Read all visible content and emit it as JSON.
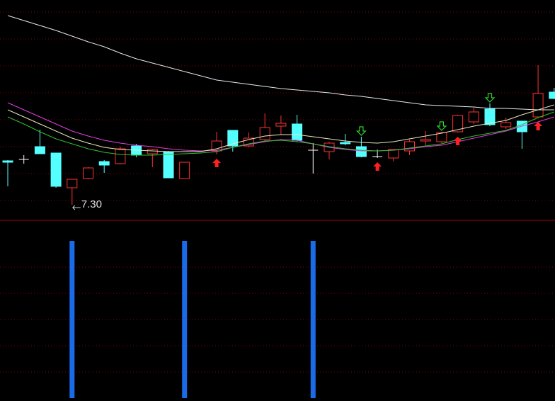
{
  "chart_data": [
    {
      "type": "candlestick",
      "categories": [
        null,
        null,
        null,
        null,
        null,
        null,
        null,
        null,
        null,
        null,
        null,
        null,
        null,
        null,
        null,
        null,
        null,
        null,
        null,
        null,
        null,
        null,
        null,
        null,
        null,
        null,
        null,
        null,
        null,
        null,
        null,
        null,
        null,
        null,
        null
      ],
      "open": [
        7.92,
        7.94,
        8.12,
        8.03,
        7.54,
        7.67,
        7.91,
        7.88,
        8.13,
        8.02,
        8.05,
        7.67,
        null,
        8.06,
        8.35,
        8.13,
        8.22,
        8.41,
        8.44,
        8.07,
        8.05,
        8.18,
        8.12,
        7.98,
        7.96,
        8.06,
        8.2,
        8.19,
        8.33,
        8.47,
        8.65,
        8.4,
        8.48,
        8.54,
        8.89
      ],
      "high": [
        7.93,
        8.0,
        8.36,
        8.03,
        7.66,
        7.83,
        7.93,
        8.12,
        8.16,
        8.09,
        8.06,
        7.9,
        null,
        8.33,
        8.35,
        8.32,
        8.59,
        8.56,
        8.57,
        8.17,
        8.19,
        8.3,
        8.26,
        8.08,
        8.08,
        8.22,
        8.34,
        8.33,
        8.57,
        8.67,
        8.73,
        8.53,
        8.48,
        9.27,
        8.95
      ],
      "low": [
        7.56,
        7.88,
        8.02,
        7.54,
        7.3,
        7.66,
        7.75,
        7.87,
        7.97,
        7.83,
        7.68,
        7.67,
        null,
        8.01,
        8.05,
        8.11,
        8.19,
        8.29,
        8.19,
        7.74,
        7.94,
        8.14,
        7.97,
        7.96,
        7.91,
        8.0,
        8.14,
        8.17,
        8.32,
        8.44,
        8.41,
        8.37,
        8.09,
        8.53,
        8.79
      ],
      "close": [
        7.9,
        7.94,
        8.02,
        7.56,
        7.66,
        7.82,
        7.86,
        8.09,
        8.0,
        8.08,
        7.68,
        7.9,
        null,
        8.2,
        8.13,
        8.24,
        8.39,
        8.45,
        8.21,
        8.07,
        8.17,
        8.16,
        7.98,
        7.98,
        8.08,
        8.19,
        8.22,
        8.32,
        8.56,
        8.61,
        8.43,
        8.46,
        8.33,
        8.87,
        8.8
      ],
      "up_color": "#ff3232",
      "down_color": "#54ffff",
      "flat_color": "#ffffff",
      "lines": [
        {
          "color": "#e8e8e8",
          "values": [
            9.97,
            9.9,
            9.83,
            9.76,
            9.68,
            9.6,
            9.53,
            9.44,
            9.36,
            9.3,
            9.24,
            9.18,
            9.12,
            9.06,
            9.03,
            9.0,
            8.97,
            8.94,
            8.92,
            8.9,
            8.88,
            8.85,
            8.83,
            8.8,
            8.77,
            8.74,
            8.71,
            8.7,
            8.69,
            8.68,
            8.66,
            8.66,
            8.65,
            8.64,
            8.64
          ]
        },
        {
          "color": "#e040e0",
          "values": [
            8.74,
            8.64,
            8.54,
            8.44,
            8.34,
            8.27,
            8.21,
            8.17,
            8.14,
            8.12,
            8.09,
            8.07,
            8.06,
            8.07,
            8.11,
            8.15,
            8.19,
            8.22,
            8.21,
            8.16,
            8.11,
            8.08,
            8.06,
            8.06,
            8.07,
            8.09,
            8.12,
            8.14,
            8.19,
            8.24,
            8.29,
            8.34,
            8.41,
            8.47,
            8.54
          ]
        },
        {
          "color": "#e8e8c0",
          "values": [
            8.64,
            8.54,
            8.44,
            8.34,
            8.24,
            8.17,
            8.11,
            8.08,
            8.07,
            8.06,
            8.05,
            8.05,
            8.05,
            8.09,
            8.16,
            8.22,
            8.27,
            8.29,
            8.29,
            8.26,
            8.23,
            8.2,
            8.18,
            8.17,
            8.19,
            8.23,
            8.27,
            8.31,
            8.36,
            8.41,
            8.45,
            8.49,
            8.57,
            8.64,
            8.71
          ]
        },
        {
          "color": "#30c030",
          "values": [
            8.54,
            8.44,
            8.33,
            8.23,
            8.16,
            8.09,
            8.04,
            8.01,
            8.0,
            8.0,
            8.01,
            8.02,
            8.03,
            8.05,
            8.11,
            8.16,
            8.2,
            8.21,
            8.19,
            8.16,
            8.12,
            8.09,
            8.07,
            8.06,
            8.07,
            8.1,
            8.13,
            8.16,
            8.22,
            8.27,
            8.31,
            8.35,
            8.43,
            8.53,
            8.61
          ]
        }
      ],
      "up_signals": [
        13,
        23,
        28,
        33
      ],
      "up_signal_color": "#ff2020",
      "down_signals": [
        22,
        27,
        30
      ],
      "down_signal_color": "#30d030",
      "annotation": {
        "text": "7.30",
        "index": 4
      },
      "ylim": [
        7.09,
        10.19
      ],
      "grid": true
    },
    {
      "type": "bar",
      "values": [
        0,
        0,
        0,
        0,
        1,
        0,
        0,
        0,
        0,
        0,
        0,
        1,
        0,
        0,
        0,
        0,
        0,
        0,
        0,
        1,
        0,
        0,
        0,
        0,
        0,
        0,
        0,
        0,
        0,
        0,
        0,
        0,
        0,
        0,
        0
      ],
      "color": "#1a6be8",
      "ylim": [
        0,
        1
      ],
      "grid": true
    }
  ]
}
